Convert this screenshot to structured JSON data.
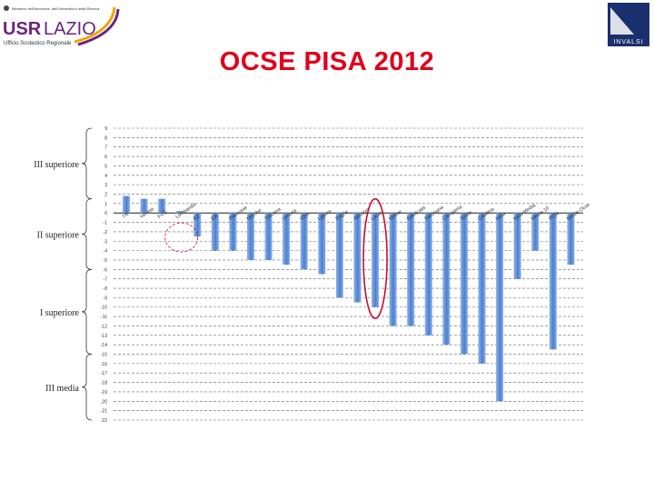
{
  "header": {
    "logo_left": {
      "line1": "Ministero dell'Istruzione, dell'Università e della Ricerca",
      "brand_a": "USR",
      "brand_b": "LAZIO",
      "subtitle": "Ufficio Scolastico Regionale"
    },
    "logo_right": {
      "text": "INVALSI"
    },
    "title": "OCSE PISA 2012"
  },
  "colors": {
    "title": "#e0001a",
    "bar": "#4a7fd0",
    "bar_light": "#8fb2e8",
    "highlight": "#c8102e",
    "grid": "#666666",
    "accent_orange": "#f0a500",
    "accent_purple": "#6b2480"
  },
  "chart_data": {
    "type": "bar",
    "categories": [
      "TN",
      "Veneto",
      "FVG",
      "Lombardia",
      "BZ",
      "ER",
      "Piemonte",
      "Marche",
      "Toscana",
      "Umbria",
      "VDA",
      "Liguria",
      "Puglia",
      "Abruzzo",
      "Lazio",
      "Molise",
      "Basilicata",
      "Sardegna",
      "Campania",
      "Sicilia",
      "Calabria",
      "Italia",
      "Italia Media",
      "Media 10",
      "PON",
      "Media Ocse"
    ],
    "values": [
      1.8,
      1.5,
      1.5,
      0.2,
      -2.5,
      -4,
      -4,
      -5,
      -5,
      -5.5,
      -6,
      -6.5,
      -9,
      -9.5,
      -10,
      -12,
      -12,
      -13,
      -14,
      -15,
      -16,
      -20,
      -7,
      -4,
      -14.5,
      -5.5
    ],
    "ylim": [
      -22,
      9
    ],
    "yticks": [
      "9",
      "8",
      "7",
      "6",
      "5",
      "4",
      "3",
      "2",
      "1",
      "0",
      "-1",
      "-2",
      "-3",
      "-4",
      "-5",
      "-6",
      "-7",
      "-8",
      "-9",
      "-10",
      "-11",
      "-12",
      "-13",
      "-14",
      "-15",
      "-16",
      "-17",
      "-18",
      "-19",
      "-20",
      "-21",
      "-22"
    ],
    "highlight": "Lazio",
    "grid": true,
    "levels": [
      {
        "label": "III superiore",
        "from": 9,
        "to": 1.5
      },
      {
        "label": "II superiore",
        "from": 1.5,
        "to": -6
      },
      {
        "label": "I superiore",
        "from": -6,
        "to": -15
      },
      {
        "label": "III media",
        "from": -15,
        "to": -22
      }
    ]
  }
}
